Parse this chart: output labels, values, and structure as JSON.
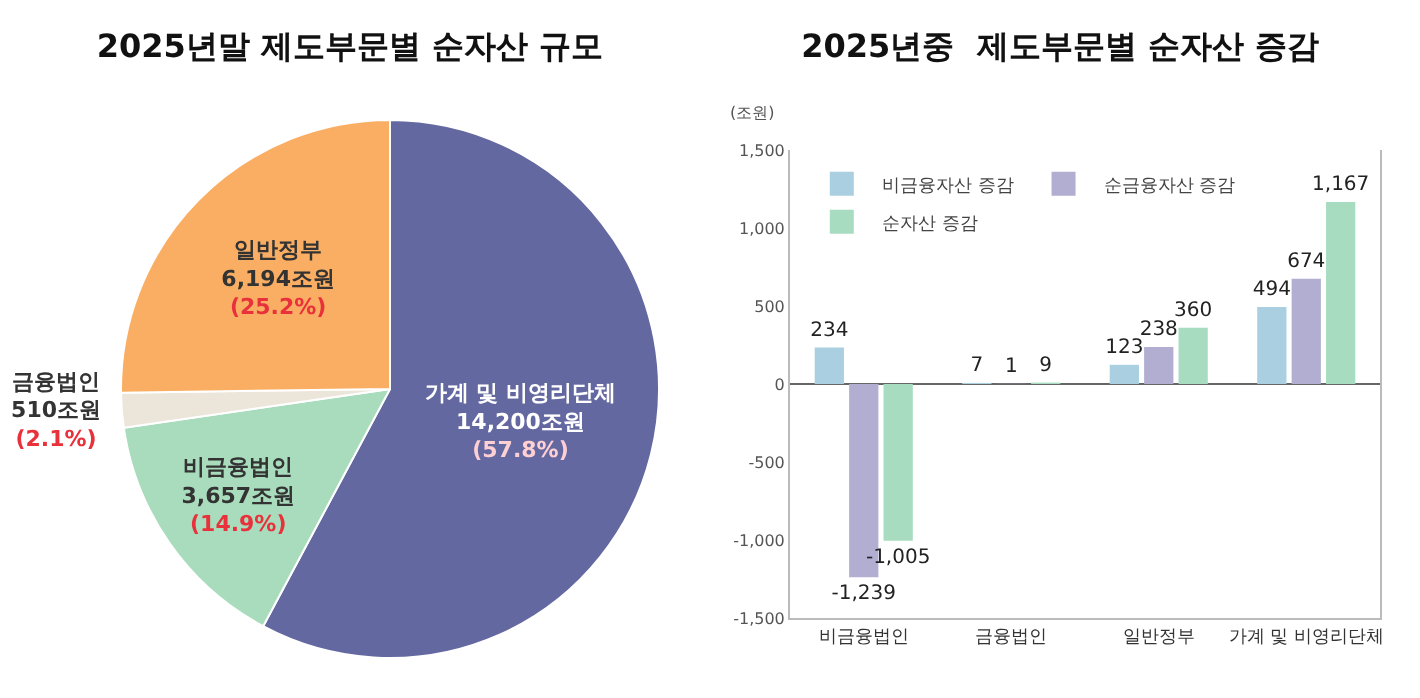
{
  "chart_data": [
    {
      "type": "pie",
      "title": "2025년말 제도부문별 순자산 규모",
      "categories": [
        "가계 및 비영리단체",
        "비금융법인",
        "금융법인",
        "일반정부"
      ],
      "values": [
        14200,
        3657,
        510,
        6194
      ],
      "colors": [
        "#6368a1",
        "#a9dcbd",
        "#ece6da",
        "#f9ae63"
      ],
      "value_labels": [
        "14,200조원\n(57.8%)",
        "3,657조원\n(14.9%)",
        "510조원\n(2.1%)",
        "6,194조원\n(25.2%)"
      ],
      "legend": false
    },
    {
      "type": "bar",
      "title": "2025년중  제도부문별 순자산 증감",
      "ylabel": "(조원)",
      "categories": [
        "비금융법인",
        "금융법인",
        "일반정부",
        "가계 및 비영리단체"
      ],
      "series": [
        {
          "name": "비금융자산 증감",
          "color": "#a9cfe0",
          "values": [
            234,
            7,
            123,
            494
          ],
          "value_labels": [
            "234",
            "7",
            "123",
            "494"
          ]
        },
        {
          "name": "순금융자산 증감",
          "color": "#b1aed2",
          "values": [
            -1239,
            1,
            238,
            674
          ],
          "value_labels": [
            "-1,239",
            "1",
            "238",
            "674"
          ]
        },
        {
          "name": "순자산 증감",
          "color": "#a8dcc0",
          "values": [
            -1005,
            9,
            360,
            1167
          ],
          "value_labels": [
            "-1,005",
            "9",
            "360",
            "1,167"
          ]
        }
      ],
      "ylim": [
        -1500,
        1500
      ],
      "yticks": [
        {
          "value": -1500,
          "label": "-1,500"
        },
        {
          "value": -1000,
          "label": "-1,000"
        },
        -500,
        0,
        500,
        {
          "value": 1000,
          "label": "1,000"
        },
        {
          "value": 1500,
          "label": "1,500"
        }
      ],
      "legend": "top left"
    }
  ]
}
